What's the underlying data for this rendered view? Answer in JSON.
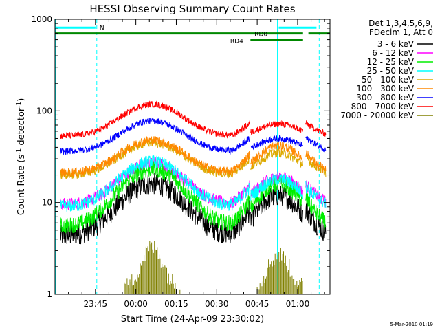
{
  "chart_data": {
    "type": "line",
    "title": "HESSI Observing Summary Count Rates",
    "xlabel": "Start Time (24-Apr-09 23:30:02)",
    "ylabel_main": "Count Rate (s",
    "ylabel_sup1": "-1",
    "ylabel_mid": " detector",
    "ylabel_sup2": "-1",
    "ylabel_end": ")",
    "yscale": "log",
    "ylim": [
      1,
      1000
    ],
    "xlim_minutes": [
      0,
      102
    ],
    "ytick_values": [
      1,
      10,
      100,
      1000
    ],
    "ytick_labels": [
      "1",
      "10",
      "100",
      "1000"
    ],
    "xtick_minutes": [
      15,
      30,
      45,
      60,
      75,
      90
    ],
    "xtick_labels": [
      "23:45",
      "00:00",
      "00:15",
      "00:30",
      "00:45",
      "01:00"
    ],
    "legend_header": [
      "Det 1,3,4,5,6,9,",
      "FDecim 1, Att 0"
    ],
    "series": [
      {
        "name": "3 - 6 keV",
        "color": "#000000",
        "base": 4.3,
        "peak": [
          16,
          12
        ],
        "noise": 0.12
      },
      {
        "name": "6 - 12 keV",
        "color": "#ff00ff",
        "base": 9.5,
        "peak": [
          27,
          19
        ],
        "noise": 0.07
      },
      {
        "name": "12 - 25 keV",
        "color": "#00ee00",
        "base": 5.5,
        "peak": [
          23,
          16
        ],
        "noise": 0.09
      },
      {
        "name": "25 - 50 keV",
        "color": "#00ffff",
        "base": 9.0,
        "peak": [
          28,
          18
        ],
        "noise": 0.07
      },
      {
        "name": "50 - 100 keV",
        "color": "#ddaa00",
        "base": 20,
        "peak": [
          45,
          35
        ],
        "noise": 0.05
      },
      {
        "name": "100 - 300 keV",
        "color": "#ff8800",
        "base": 21,
        "peak": [
          48,
          42
        ],
        "noise": 0.05
      },
      {
        "name": "300 - 800 keV",
        "color": "#0000ff",
        "base": 36,
        "peak": [
          78,
          50
        ],
        "noise": 0.035
      },
      {
        "name": "800 - 7000 keV",
        "color": "#ff0000",
        "base": 53,
        "peak": [
          118,
          72
        ],
        "noise": 0.035
      },
      {
        "name": "7000 - 20000 keV",
        "color": "#808000",
        "base": 1.0,
        "peak": [
          3,
          2.5
        ],
        "noise": 0.0
      }
    ],
    "flags": [
      {
        "label": "N",
        "color": "#00ffff",
        "y": 810,
        "segments": [
          [
            0,
            15
          ],
          [
            83,
            97
          ]
        ]
      },
      {
        "label": "RD0",
        "color": "#008800",
        "y": 700,
        "segments": [
          [
            0,
            92
          ],
          [
            94,
            102
          ]
        ]
      },
      {
        "label": "RD4",
        "color": "#008800",
        "y": 590,
        "segments": [
          [
            72.5,
            92
          ]
        ]
      }
    ],
    "vlines_minutes": [
      15.5,
      82.5,
      98
    ]
  },
  "footer": {
    "date_stamp": "5-Mar-2010 01:19"
  }
}
